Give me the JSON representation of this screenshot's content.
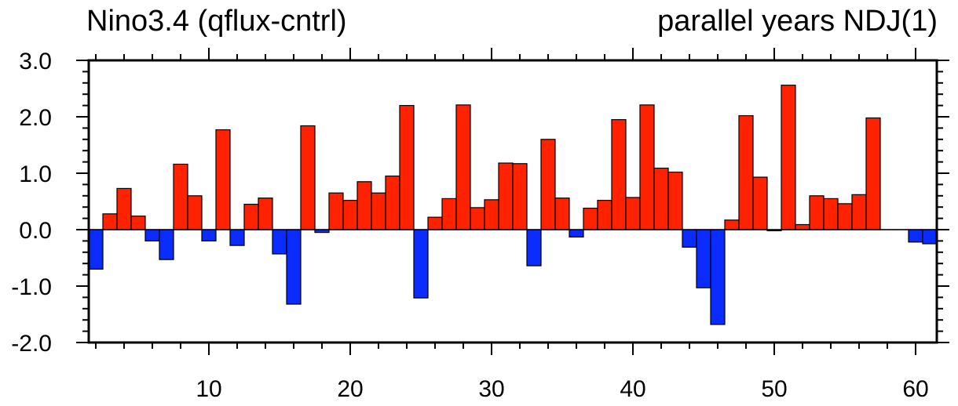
{
  "chart_data": {
    "type": "bar",
    "title_left": "Nino3.4 (qflux-cntrl)",
    "title_right": "parallel years NDJ(1)",
    "xlabel": "",
    "ylabel": "",
    "xlim": [
      1.5,
      61.5
    ],
    "ylim": [
      -2.0,
      3.0
    ],
    "x_ticks": [
      10,
      20,
      30,
      40,
      50,
      60
    ],
    "y_ticks": [
      3.0,
      2.0,
      1.0,
      0.0,
      -1.0,
      -2.0
    ],
    "y_tick_labels": [
      "3.0",
      "2.0",
      "1.0",
      "0.0",
      "-1.0",
      "-2.0"
    ],
    "x_tick_labels": [
      "10",
      "20",
      "30",
      "40",
      "50",
      "60"
    ],
    "grid": false,
    "positive_color": "#ff2200",
    "negative_color": "#0a2cff",
    "x": [
      2,
      3,
      4,
      5,
      6,
      7,
      8,
      9,
      10,
      11,
      12,
      13,
      14,
      15,
      16,
      17,
      18,
      19,
      20,
      21,
      22,
      23,
      24,
      25,
      26,
      27,
      28,
      29,
      30,
      31,
      32,
      33,
      34,
      35,
      36,
      37,
      38,
      39,
      40,
      41,
      42,
      43,
      44,
      45,
      46,
      47,
      48,
      49,
      50,
      51,
      52,
      53,
      54,
      55,
      56,
      57,
      58,
      59,
      60,
      61
    ],
    "values": [
      -0.7,
      0.28,
      0.73,
      0.24,
      -0.2,
      -0.53,
      1.16,
      0.6,
      -0.2,
      1.77,
      -0.28,
      0.45,
      0.56,
      -0.43,
      -1.32,
      1.84,
      -0.05,
      0.65,
      0.52,
      0.85,
      0.65,
      0.95,
      2.2,
      -1.21,
      0.22,
      0.55,
      2.21,
      0.39,
      0.53,
      1.18,
      1.17,
      -0.64,
      1.6,
      0.56,
      -0.13,
      0.38,
      0.52,
      1.95,
      0.57,
      2.21,
      1.09,
      1.02,
      -0.31,
      -1.03,
      -1.68,
      0.17,
      2.02,
      0.93,
      -0.02,
      2.56,
      0.09,
      0.6,
      0.55,
      0.46,
      0.62,
      1.98,
      0.0,
      0.0,
      -0.22,
      -0.25
    ]
  }
}
